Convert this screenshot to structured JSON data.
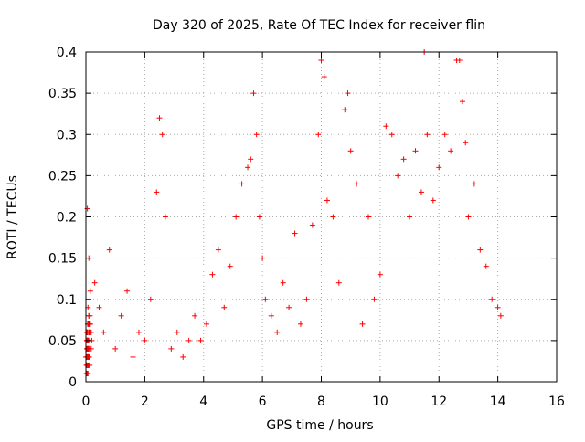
{
  "chart_data": {
    "type": "scatter",
    "title": "Day 320 of 2025, Rate Of TEC Index for receiver flin",
    "xlabel": "GPS time / hours",
    "ylabel": "ROTI / TECUs",
    "xlim": [
      0,
      16
    ],
    "ylim": [
      0,
      0.4
    ],
    "x_ticks": [
      0,
      2,
      4,
      6,
      8,
      10,
      12,
      14,
      16
    ],
    "x_tick_labels": [
      "0",
      "2",
      "4",
      "6",
      "8",
      "10",
      "12",
      "14",
      "16"
    ],
    "y_ticks": [
      0,
      0.05,
      0.1,
      0.15,
      0.2,
      0.25,
      0.3,
      0.35,
      0.4
    ],
    "y_tick_labels": [
      "0",
      "0.05",
      "0.1",
      "0.15",
      "0.2",
      "0.25",
      "0.3",
      "0.35",
      "0.4"
    ],
    "grid": true,
    "marker": "+",
    "color": "#ff0000",
    "series": [
      {
        "x": [
          0.0,
          0.05,
          0.1,
          0.15,
          0.2,
          0.3,
          0.45,
          0.6,
          0.8,
          1.0,
          1.2,
          1.4,
          1.6,
          1.8,
          2.0,
          2.2,
          2.4,
          2.5,
          2.6,
          2.7,
          2.9,
          3.1,
          3.3,
          3.5,
          3.7,
          3.9,
          4.1,
          4.3,
          4.5,
          4.7,
          4.9,
          5.1,
          5.3,
          5.5,
          5.6,
          5.7,
          5.8,
          5.9,
          6.0,
          6.1,
          6.3,
          6.5,
          6.7,
          6.9,
          7.1,
          7.3,
          7.5,
          7.7,
          7.9,
          8.0,
          8.1,
          8.2,
          8.4,
          8.6,
          8.8,
          8.9,
          9.0,
          9.2,
          9.4,
          9.6,
          9.8,
          10.0,
          10.2,
          10.4,
          10.6,
          10.8,
          11.0,
          11.2,
          11.4,
          11.5,
          11.6,
          11.8,
          12.0,
          12.2,
          12.4,
          12.6,
          12.7,
          12.8,
          12.9,
          13.0,
          13.2,
          13.4,
          13.6,
          13.8,
          14.0,
          14.1,
          0.02,
          0.08,
          0.13,
          0.18,
          0.04,
          0.07,
          0.11,
          0.03,
          0.06,
          0.09,
          0.02,
          0.05,
          0.08,
          0.03,
          0.06,
          0.1,
          0.04,
          0.07,
          0.03,
          0.06,
          0.02,
          0.05,
          0.03,
          0.07,
          0.02,
          0.04,
          0.06,
          0.08,
          0.03,
          0.05,
          0.07,
          0.1,
          0.04,
          0.06,
          0.09,
          0.12,
          0.15,
          0.05,
          0.08,
          0.11,
          0.04,
          0.07,
          0.1,
          0.03,
          0.06,
          0.09,
          0.04,
          0.07,
          0.05,
          0.08,
          0.11,
          0.03,
          0.06,
          0.09,
          0.12,
          0.04,
          0.07,
          0.1,
          0.05,
          0.08,
          0.11,
          0.14,
          0.06,
          0.09,
          0.12,
          0.15,
          0.18,
          0.07,
          0.1,
          0.13,
          0.04,
          0.07,
          0.1,
          0.13,
          0.05,
          0.08,
          0.11,
          0.04,
          0.07,
          0.1,
          0.03,
          0.06,
          0.09,
          0.04,
          0.06,
          0.03
        ],
        "y": [
          0.03,
          0.21,
          0.15,
          0.11,
          0.05,
          0.12,
          0.09,
          0.06,
          0.16,
          0.04,
          0.08,
          0.11,
          0.03,
          0.06,
          0.05,
          0.1,
          0.23,
          0.32,
          0.3,
          0.2,
          0.04,
          0.06,
          0.03,
          0.05,
          0.08,
          0.05,
          0.07,
          0.13,
          0.16,
          0.09,
          0.14,
          0.2,
          0.24,
          0.26,
          0.27,
          0.35,
          0.3,
          0.2,
          0.15,
          0.1,
          0.08,
          0.06,
          0.12,
          0.09,
          0.18,
          0.07,
          0.1,
          0.19,
          0.3,
          0.39,
          0.37,
          0.22,
          0.2,
          0.12,
          0.33,
          0.35,
          0.28,
          0.24,
          0.07,
          0.2,
          0.1,
          0.13,
          0.31,
          0.3,
          0.25,
          0.27,
          0.2,
          0.28,
          0.23,
          0.4,
          0.3,
          0.22,
          0.26,
          0.3,
          0.28,
          0.39,
          0.39,
          0.34,
          0.29,
          0.2,
          0.24,
          0.16,
          0.14,
          0.1,
          0.09,
          0.08,
          0.01,
          0.03,
          0.02,
          0.04,
          0.02,
          0.01,
          0.03,
          0.02,
          0.01,
          0.03,
          0.02,
          0.04,
          0.02,
          0.01,
          0.03,
          0.02,
          0.04,
          0.03,
          0.02,
          0.01,
          0.02,
          0.03,
          0.01,
          0.02,
          0.03,
          0.02,
          0.04,
          0.03,
          0.02,
          0.05,
          0.03,
          0.04,
          0.06,
          0.05,
          0.04,
          0.07,
          0.06,
          0.05,
          0.04,
          0.03,
          0.05,
          0.04,
          0.06,
          0.03,
          0.05,
          0.04,
          0.06,
          0.05,
          0.04,
          0.03,
          0.06,
          0.05,
          0.04,
          0.07,
          0.06,
          0.05,
          0.04,
          0.06,
          0.05,
          0.07,
          0.06,
          0.08,
          0.07,
          0.06,
          0.05,
          0.07,
          0.06,
          0.09,
          0.08,
          0.07,
          0.06,
          0.05,
          0.08,
          0.07,
          0.06,
          0.05,
          0.07,
          0.06,
          0.05,
          0.04,
          0.06,
          0.05,
          0.04,
          0.05,
          0.03,
          0.04
        ]
      }
    ]
  }
}
